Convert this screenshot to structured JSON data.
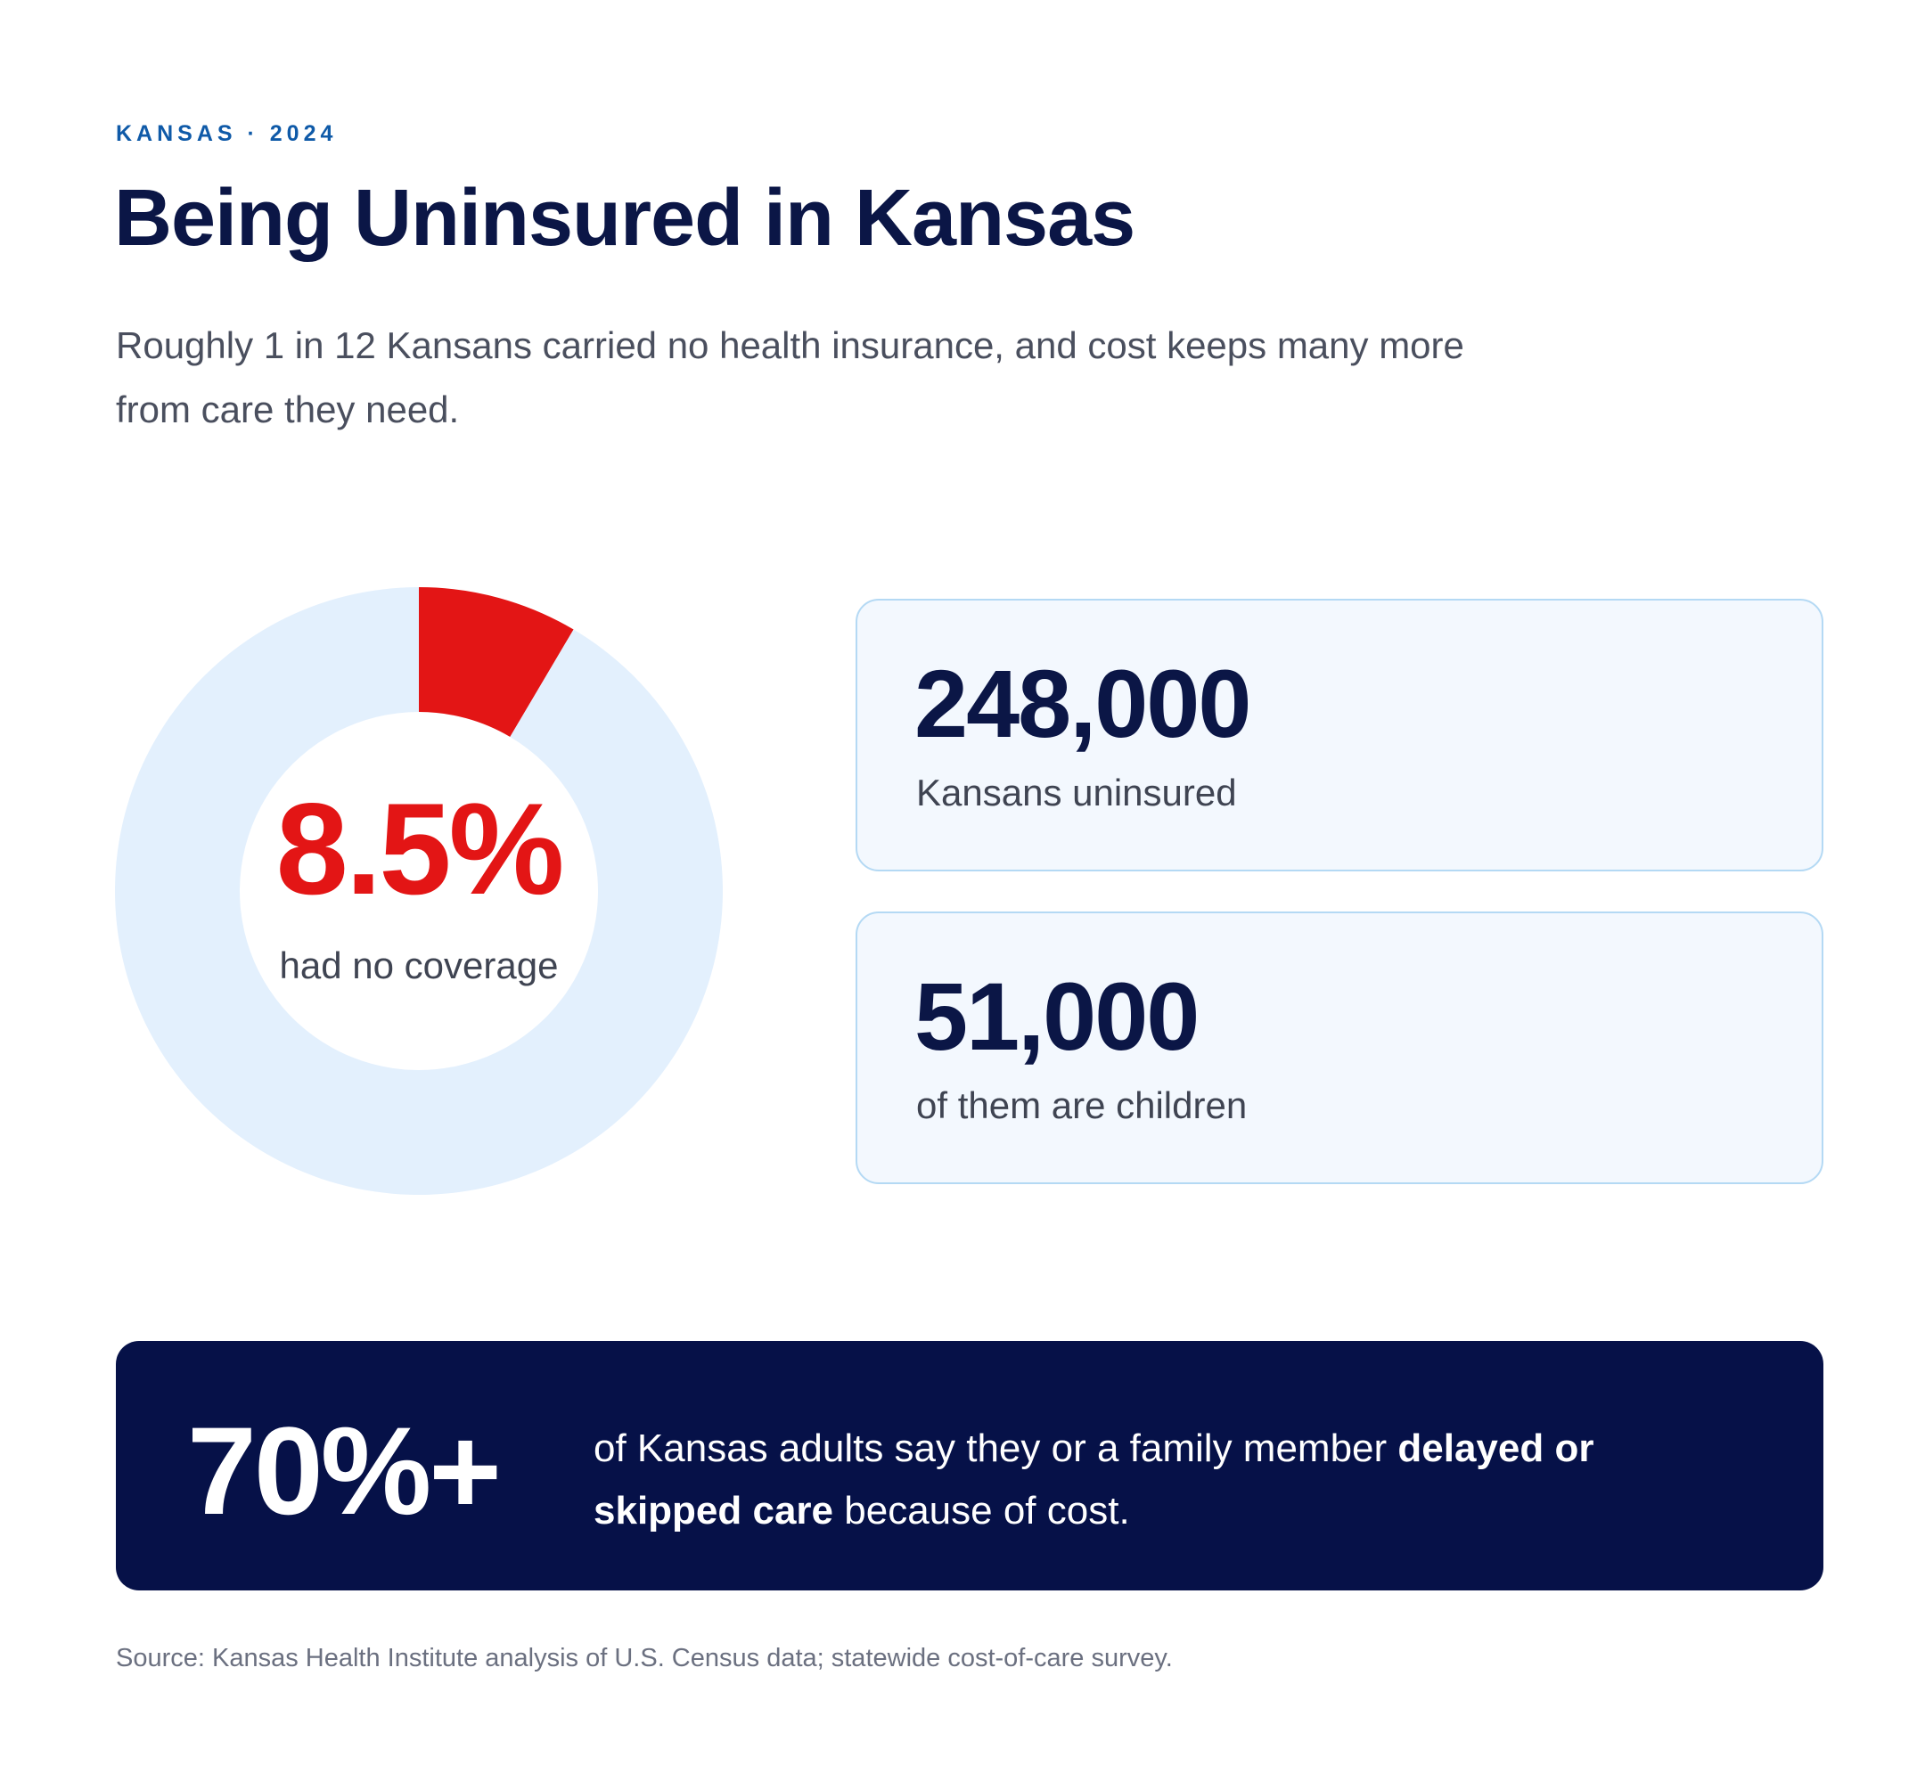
{
  "header": {
    "eyebrow": "KANSAS · 2024",
    "title": "Being Uninsured in Kansas",
    "subtitle": "Roughly 1 in 12 Kansans carried no health insurance, and cost keeps many more from care they need."
  },
  "chart_data": {
    "type": "pie",
    "values": [
      8.5,
      91.5
    ],
    "center_value": "8.5%",
    "center_label": "had no coverage",
    "colors": [
      "#e31515",
      "#e3f0fd"
    ]
  },
  "stats": [
    {
      "value": "248,000",
      "label": "Kansans uninsured"
    },
    {
      "value": "51,000",
      "label": "of them are children"
    }
  ],
  "banner": {
    "value": "70%+",
    "text_before": "of Kansas adults say they or a family member ",
    "text_bold": "delayed or skipped care",
    "text_after": " because of cost."
  },
  "source": "Source: Kansas Health Institute analysis of U.S. Census data; statewide cost-of-care survey.",
  "colors": {
    "accent_red": "#e31515",
    "navy": "#0b1646",
    "banner_bg": "#061148",
    "eyebrow_blue": "#0f5aa8",
    "card_bg": "#f3f8fe",
    "card_border": "#b4d9f4",
    "donut_track": "#e3f0fd"
  }
}
